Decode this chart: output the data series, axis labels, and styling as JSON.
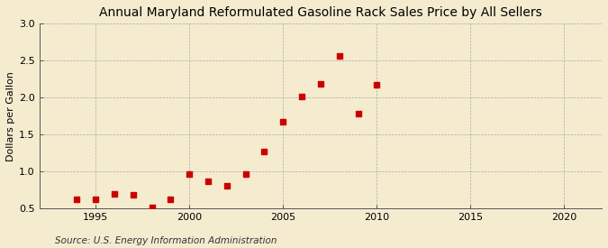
{
  "title": "Annual Maryland Reformulated Gasoline Rack Sales Price by All Sellers",
  "ylabel": "Dollars per Gallon",
  "source": "Source: U.S. Energy Information Administration",
  "background_color": "#f5ecd0",
  "plot_bg_color": "#f5ecd0",
  "years": [
    1994,
    1995,
    1996,
    1997,
    1998,
    1999,
    2000,
    2001,
    2002,
    2003,
    2004,
    2005,
    2006,
    2007,
    2008,
    2009,
    2010
  ],
  "values": [
    0.62,
    0.63,
    0.7,
    0.68,
    0.52,
    0.62,
    0.97,
    0.87,
    0.81,
    0.97,
    1.27,
    1.67,
    2.01,
    2.18,
    2.57,
    1.78,
    2.17
  ],
  "marker_color": "#cc0000",
  "xlim": [
    1992,
    2022
  ],
  "ylim": [
    0.5,
    3.0
  ],
  "xticks": [
    1995,
    2000,
    2005,
    2010,
    2015,
    2020
  ],
  "yticks": [
    0.5,
    1.0,
    1.5,
    2.0,
    2.5,
    3.0
  ],
  "title_fontsize": 10,
  "axis_label_fontsize": 8,
  "tick_fontsize": 8,
  "source_fontsize": 7.5,
  "grid_color": "#999999",
  "grid_alpha": 0.8,
  "marker_size": 16
}
